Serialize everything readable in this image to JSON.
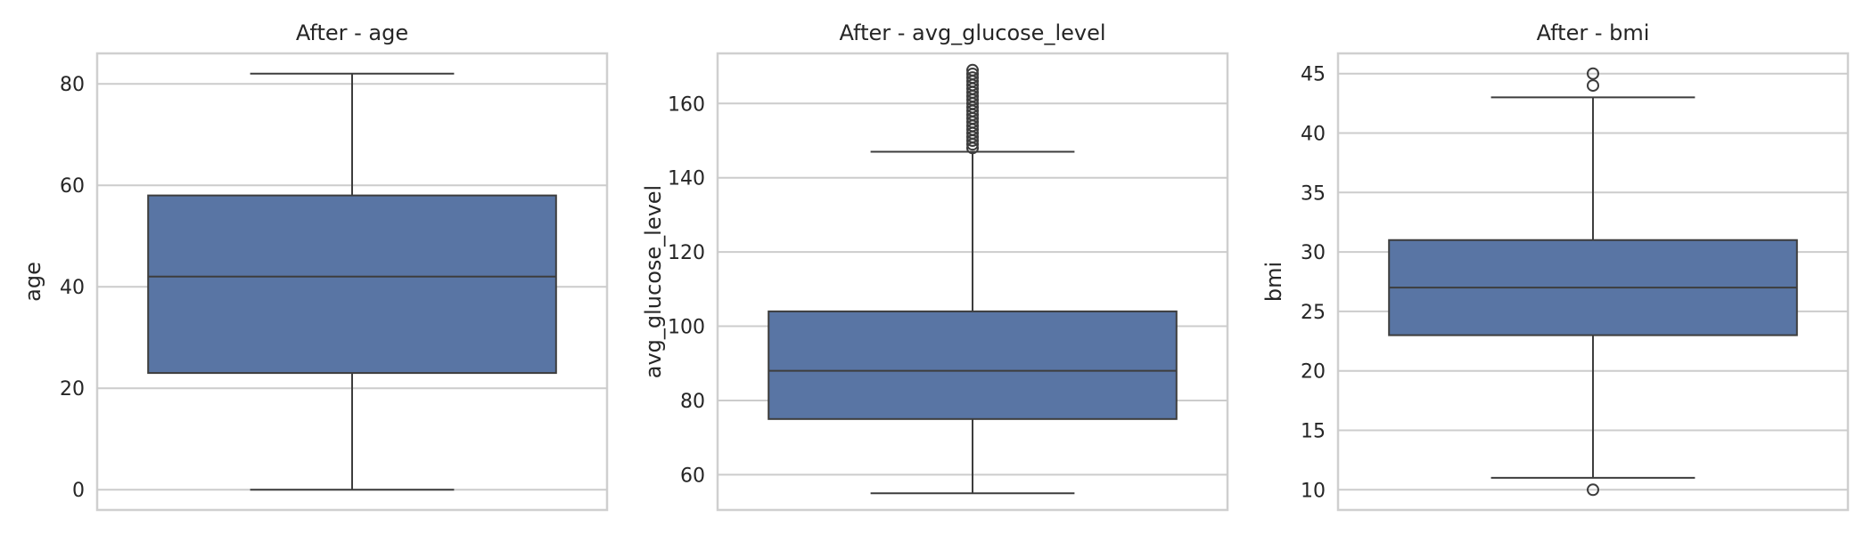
{
  "figure": {
    "background": "#ffffff"
  },
  "chart_data": [
    {
      "type": "box",
      "title": "After - age",
      "ylabel": "age",
      "ylim": [
        -4,
        86
      ],
      "yticks": [
        0,
        20,
        40,
        60,
        80
      ],
      "grid": true,
      "color": "#5975a4",
      "box": {
        "whislo": 0,
        "q1": 23,
        "median": 42,
        "q3": 58,
        "whishi": 82,
        "fliers": []
      }
    },
    {
      "type": "box",
      "title": "After - avg_glucose_level",
      "ylabel": "avg_glucose_level",
      "ylim": [
        50.5,
        173.5
      ],
      "yticks": [
        60,
        80,
        100,
        120,
        140,
        160
      ],
      "grid": true,
      "color": "#5975a4",
      "box": {
        "whislo": 55,
        "q1": 75,
        "median": 88,
        "q3": 104,
        "whishi": 147,
        "fliers": [
          148,
          149,
          150,
          151,
          152,
          153,
          154,
          155,
          156,
          157,
          158,
          159,
          160,
          161,
          162,
          163,
          164,
          165,
          166,
          167,
          168,
          169
        ]
      }
    },
    {
      "type": "box",
      "title": "After - bmi",
      "ylabel": "bmi",
      "ylim": [
        8.3,
        46.7
      ],
      "yticks": [
        10,
        15,
        20,
        25,
        30,
        35,
        40,
        45
      ],
      "grid": true,
      "color": "#5975a4",
      "box": {
        "whislo": 11,
        "q1": 23,
        "median": 27,
        "q3": 31,
        "whishi": 43,
        "fliers": [
          10,
          44,
          45
        ]
      }
    }
  ]
}
